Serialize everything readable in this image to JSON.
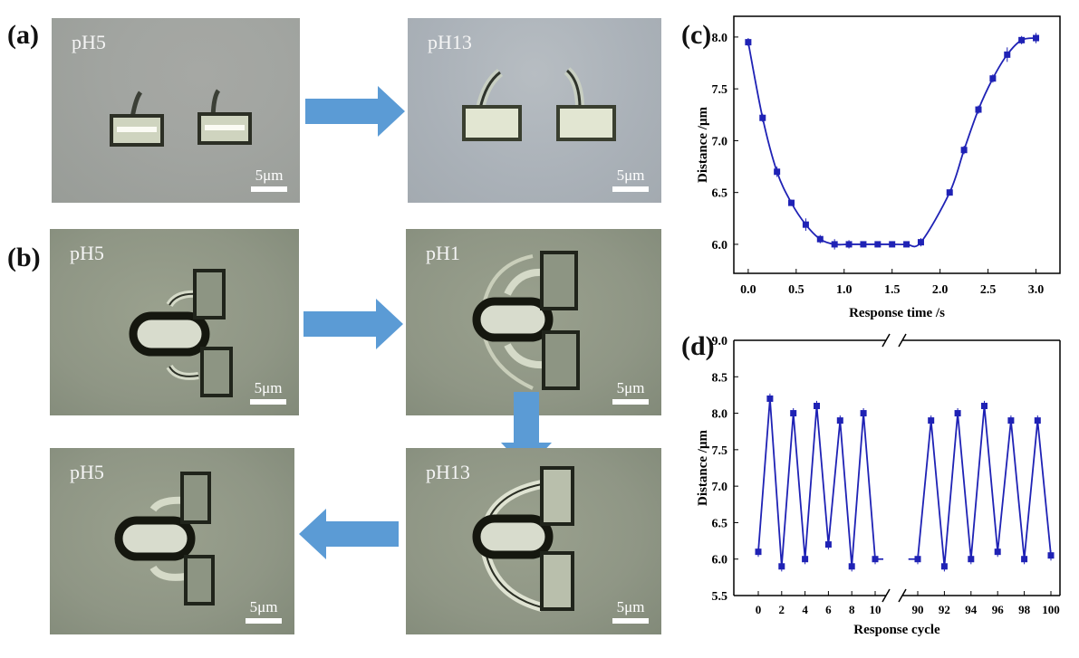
{
  "labels": {
    "a": "(a)",
    "b": "(b)",
    "c": "(c)",
    "d": "(d)"
  },
  "micrographs": {
    "a1": {
      "ph": "pH5",
      "scale": "5μm"
    },
    "a2": {
      "ph": "pH13",
      "scale": "5μm"
    },
    "b1": {
      "ph": "pH5",
      "scale": "5μm"
    },
    "b2": {
      "ph": "pH1",
      "scale": "5μm"
    },
    "b3": {
      "ph": "pH13",
      "scale": "5μm"
    },
    "b4": {
      "ph": "pH5",
      "scale": "5μm"
    }
  },
  "colors": {
    "arrow": "#5b9bd5",
    "series": "#1f22b5"
  },
  "chart_data": [
    {
      "type": "line",
      "xlabel": "Response time /s",
      "ylabel": "Distance /μm",
      "xlim": [
        -0.15,
        3.25
      ],
      "ylim": [
        5.72,
        8.2
      ],
      "xticks": [
        "0.0",
        "0.5",
        "1.0",
        "1.5",
        "2.0",
        "2.5",
        "3.0"
      ],
      "yticks": [
        "6.0",
        "6.5",
        "7.0",
        "7.5",
        "8.0"
      ],
      "x": [
        0.0,
        0.15,
        0.3,
        0.45,
        0.6,
        0.75,
        0.9,
        1.05,
        1.2,
        1.35,
        1.5,
        1.65,
        1.8,
        2.1,
        2.25,
        2.4,
        2.55,
        2.7,
        2.85,
        3.0
      ],
      "y": [
        7.95,
        7.22,
        6.7,
        6.4,
        6.19,
        6.05,
        6.0,
        6.0,
        6.0,
        6.0,
        6.0,
        6.0,
        6.02,
        6.5,
        6.91,
        7.3,
        7.6,
        7.83,
        7.97,
        7.99
      ],
      "err": [
        0.04,
        0.04,
        0.05,
        0.03,
        0.06,
        0.04,
        0.05,
        0.04,
        0.03,
        0.02,
        0.02,
        0.02,
        0.04,
        0.03,
        0.04,
        0.04,
        0.04,
        0.07,
        0.04,
        0.05
      ],
      "grid": false
    },
    {
      "type": "line",
      "xlabel": "Response cycle",
      "ylabel": "Distance /μm",
      "ylim": [
        5.5,
        9.0
      ],
      "yticks": [
        "5.5",
        "6.0",
        "6.5",
        "7.0",
        "7.5",
        "8.0",
        "8.5",
        "9.0"
      ],
      "xticks_left": [
        "0",
        "2",
        "4",
        "6",
        "8",
        "10"
      ],
      "xticks_right": [
        "90",
        "92",
        "94",
        "96",
        "98",
        "100"
      ],
      "axis_break": true,
      "segments": [
        {
          "x": [
            0,
            1,
            2,
            3,
            4,
            5,
            6,
            7,
            8,
            9,
            10,
            10.7
          ],
          "y": [
            6.1,
            8.2,
            5.9,
            8.0,
            6.0,
            8.1,
            6.2,
            7.9,
            5.9,
            8.0,
            6.0,
            6.0
          ]
        },
        {
          "x": [
            89.3,
            90,
            91,
            92,
            93,
            94,
            95,
            96,
            97,
            98,
            99,
            100
          ],
          "y": [
            6.0,
            6.0,
            7.9,
            5.9,
            8.0,
            6.0,
            8.1,
            6.1,
            7.9,
            6.0,
            7.9,
            6.05
          ]
        }
      ],
      "grid": false
    }
  ]
}
